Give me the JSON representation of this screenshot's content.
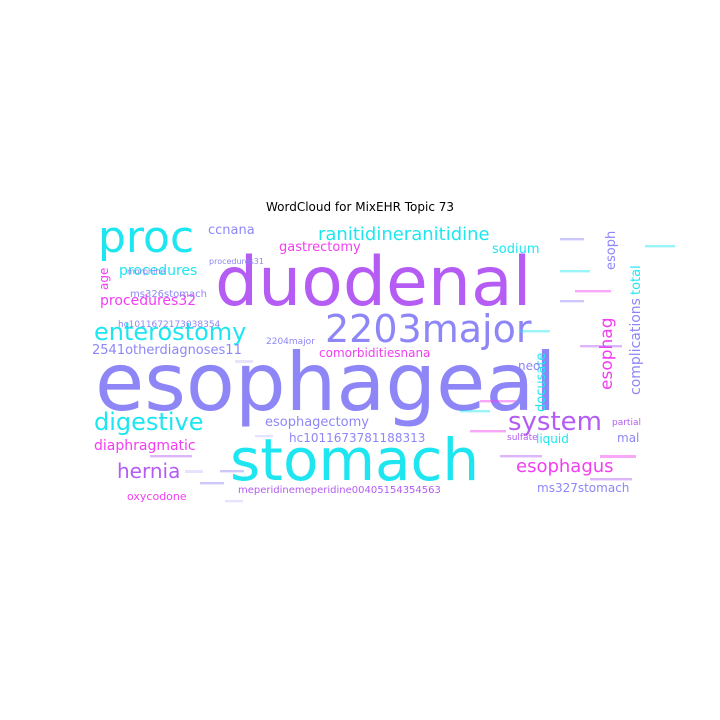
{
  "chart_data": {
    "type": "wordcloud",
    "title": "WordCloud for MixEHR Topic 73",
    "colors": {
      "cyan": "#1ee6f0",
      "blue": "#8e86f7",
      "violet": "#b45cf4",
      "magenta": "#f23ef2",
      "light": "#c9c2fb"
    },
    "words": [
      {
        "text": "esophageal",
        "weight": 1.0,
        "color": "#8e86f7"
      },
      {
        "text": "duodenal",
        "weight": 0.8,
        "color": "#b45cf4"
      },
      {
        "text": "stomach",
        "weight": 0.7,
        "color": "#1ee6f0"
      },
      {
        "text": "2203major",
        "weight": 0.45,
        "color": "#8e86f7"
      },
      {
        "text": "proc",
        "weight": 0.45,
        "color": "#1ee6f0"
      },
      {
        "text": "enterostomy",
        "weight": 0.3,
        "color": "#1ee6f0"
      },
      {
        "text": "system",
        "weight": 0.3,
        "color": "#b45cf4"
      },
      {
        "text": "digestive",
        "weight": 0.28,
        "color": "#1ee6f0"
      },
      {
        "text": "ranitidineranitidine",
        "weight": 0.25,
        "color": "#1ee6f0"
      },
      {
        "text": "hernia",
        "weight": 0.22,
        "color": "#b45cf4"
      },
      {
        "text": "esophagus",
        "weight": 0.22,
        "color": "#f23ef2"
      },
      {
        "text": "esophag",
        "weight": 0.2,
        "color": "#f23ef2"
      },
      {
        "text": "complications",
        "weight": 0.18,
        "color": "#8e86f7"
      },
      {
        "text": "diaphragmatic",
        "weight": 0.16,
        "color": "#f23ef2"
      },
      {
        "text": "esophagectomy",
        "weight": 0.15,
        "color": "#8e86f7"
      },
      {
        "text": "procedures32",
        "weight": 0.15,
        "color": "#f23ef2"
      },
      {
        "text": "procedures",
        "weight": 0.15,
        "color": "#1ee6f0"
      },
      {
        "text": "gastrectomy",
        "weight": 0.14,
        "color": "#f23ef2"
      },
      {
        "text": "sodium",
        "weight": 0.14,
        "color": "#1ee6f0"
      },
      {
        "text": "ccnana",
        "weight": 0.14,
        "color": "#8e86f7"
      },
      {
        "text": "comorbiditiesnana",
        "weight": 0.13,
        "color": "#f23ef2"
      },
      {
        "text": "2541otherdiagnoses11",
        "weight": 0.13,
        "color": "#8e86f7"
      },
      {
        "text": "hc1011673781188313",
        "weight": 0.12,
        "color": "#8e86f7"
      },
      {
        "text": "docusate",
        "weight": 0.13,
        "color": "#1ee6f0"
      },
      {
        "text": "total",
        "weight": 0.12,
        "color": "#1ee6f0"
      },
      {
        "text": "esoph",
        "weight": 0.12,
        "color": "#8e86f7"
      },
      {
        "text": "ms327stomach",
        "weight": 0.12,
        "color": "#8e86f7"
      },
      {
        "text": "liquid",
        "weight": 0.12,
        "color": "#1ee6f0"
      },
      {
        "text": "neo",
        "weight": 0.12,
        "color": "#8e86f7"
      },
      {
        "text": "mal",
        "weight": 0.11,
        "color": "#8e86f7"
      },
      {
        "text": "age",
        "weight": 0.11,
        "color": "#f23ef2"
      },
      {
        "text": "meperidinemeperidine00405154354563",
        "weight": 0.1,
        "color": "#b45cf4"
      },
      {
        "text": "oxycodone",
        "weight": 0.1,
        "color": "#f23ef2"
      },
      {
        "text": "2204major",
        "weight": 0.08,
        "color": "#8e86f7"
      },
      {
        "text": "partial",
        "weight": 0.09,
        "color": "#b45cf4"
      },
      {
        "text": "sulfate",
        "weight": 0.08,
        "color": "#b45cf4"
      },
      {
        "text": "ms326stomach",
        "weight": 0.08,
        "color": "#8e86f7"
      },
      {
        "text": "hc1011672173038354",
        "weight": 0.08,
        "color": "#8e86f7"
      },
      {
        "text": "morphine",
        "weight": 0.07,
        "color": "#8e86f7"
      },
      {
        "text": "procedures31",
        "weight": 0.07,
        "color": "#8e86f7"
      }
    ]
  }
}
